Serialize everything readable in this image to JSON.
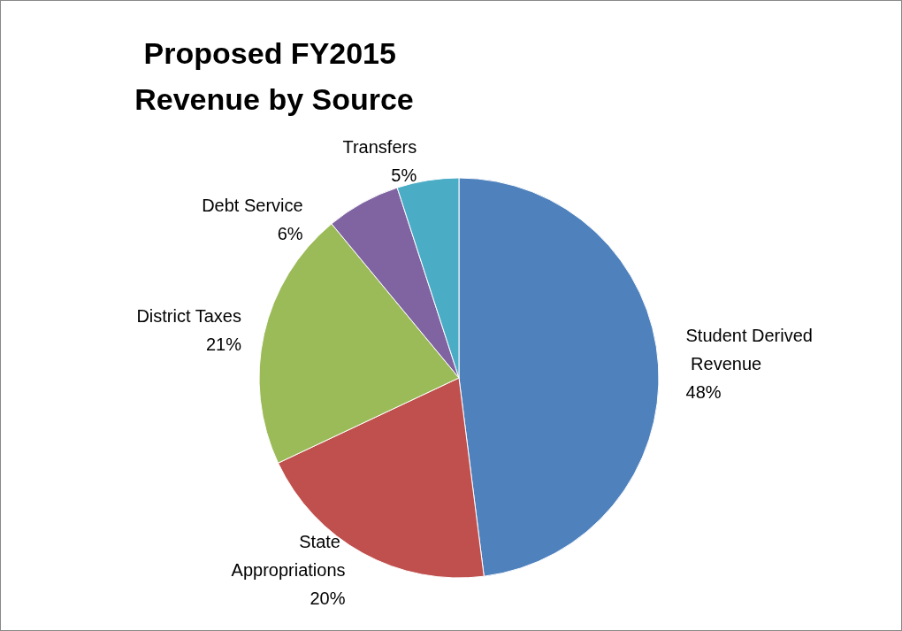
{
  "chart_data": {
    "type": "pie",
    "title": "Proposed FY2015 Revenue by Source",
    "categories": [
      "Student Derived Revenue",
      "State Appropriations",
      "District Taxes",
      "Debt Service",
      "Transfers"
    ],
    "values": [
      48,
      20,
      21,
      6,
      5
    ],
    "value_labels": [
      "48%",
      "20%",
      "21%",
      "6%",
      "5%"
    ],
    "colors": [
      "#4f81bd",
      "#c0504d",
      "#9bbb59",
      "#8064a2",
      "#4bacc6"
    ],
    "legend": false
  }
}
